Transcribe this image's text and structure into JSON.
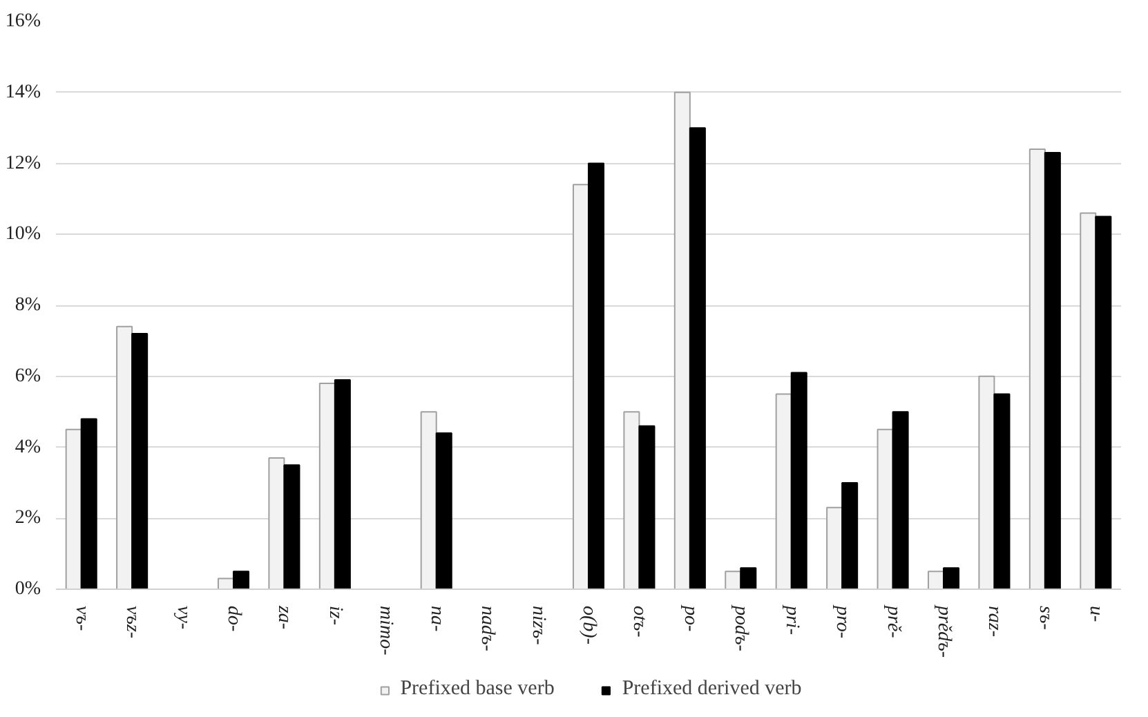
{
  "chart_data": {
    "type": "bar",
    "categories": [
      "vъ-",
      "vъz-",
      "vy-",
      "do-",
      "za-",
      "iz-",
      "mimo-",
      "na-",
      "nadъ-",
      "nizъ-",
      "o(b)-",
      "otъ-",
      "po-",
      "podъ-",
      "pri-",
      "pro-",
      "prě-",
      "prědъ-",
      "raz-",
      "sъ-",
      "u-"
    ],
    "series": [
      {
        "name": "Prefixed base verb",
        "color": "#f2f2f2",
        "values": [
          4.5,
          7.4,
          0,
          0.3,
          3.7,
          5.8,
          0,
          5.0,
          0,
          0,
          11.4,
          5.0,
          14.0,
          0.5,
          5.5,
          2.3,
          4.5,
          0.5,
          6.0,
          12.4,
          10.6
        ]
      },
      {
        "name": "Prefixed derived verb",
        "color": "#000000",
        "values": [
          4.8,
          7.2,
          0,
          0.5,
          3.5,
          5.9,
          0,
          4.4,
          0,
          0,
          12.0,
          4.6,
          13.0,
          0.6,
          6.1,
          3.0,
          5.0,
          0.6,
          5.5,
          12.3,
          10.5
        ]
      }
    ],
    "ylim": [
      0,
      16
    ],
    "yticks": [
      {
        "value": 0,
        "label": "0%"
      },
      {
        "value": 2,
        "label": "2%"
      },
      {
        "value": 4,
        "label": "4%"
      },
      {
        "value": 6,
        "label": "6%"
      },
      {
        "value": 8,
        "label": "8%"
      },
      {
        "value": 10,
        "label": "10%"
      },
      {
        "value": 12,
        "label": "12%"
      },
      {
        "value": 14,
        "label": "14%"
      },
      {
        "value": 16,
        "label": "16%"
      }
    ],
    "grid": "y",
    "legend": "bottom"
  }
}
